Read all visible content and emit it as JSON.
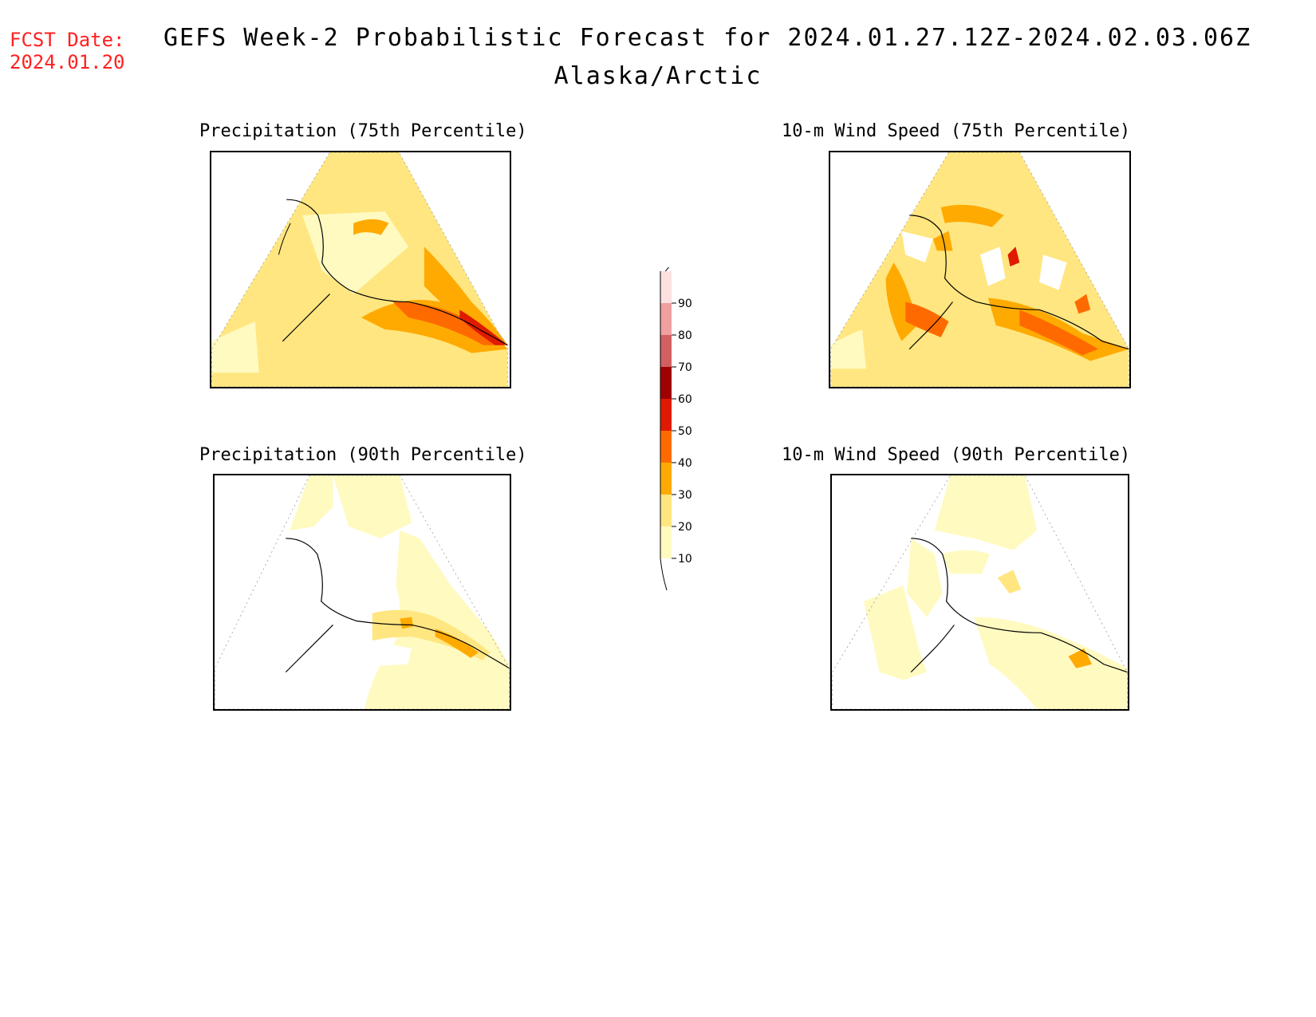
{
  "header": {
    "fcst_label": "FCST Date:",
    "fcst_date": "2024.01.20",
    "title": "GEFS Week-2 Probabilistic Forecast for 2024.01.27.12Z-2024.02.03.06Z",
    "region": "Alaska/Arctic"
  },
  "panels": [
    {
      "title": "Precipitation (75th Percentile)"
    },
    {
      "title": "10-m Wind Speed (75th Percentile)"
    },
    {
      "title": "Precipitation (90th Percentile)"
    },
    {
      "title": "10-m Wind Speed (90th Percentile)"
    }
  ],
  "legend": {
    "labels": [
      "10",
      "20",
      "30",
      "40",
      "50",
      "60",
      "70",
      "80",
      "90"
    ],
    "colors": [
      "#fffac0",
      "#ffe680",
      "#ffaa00",
      "#ff6a00",
      "#e01a00",
      "#a00000",
      "#d26060",
      "#f0a0a0",
      "#fde0e0"
    ]
  }
}
